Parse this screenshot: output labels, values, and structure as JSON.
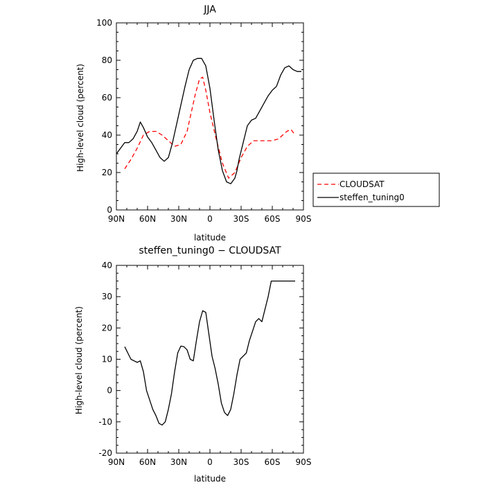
{
  "chart_data": [
    {
      "type": "line",
      "title": "JJA",
      "xlabel": "latitude",
      "ylabel": "High-level cloud (percent)",
      "xlim": [
        -90,
        90
      ],
      "ylim": [
        0,
        100
      ],
      "x_ticks": [
        -90,
        -60,
        -30,
        0,
        30,
        60,
        90
      ],
      "x_tick_labels": [
        "90N",
        "60N",
        "30N",
        "0",
        "30S",
        "60S",
        "90S"
      ],
      "y_ticks": [
        0,
        20,
        40,
        60,
        80,
        100
      ],
      "legend_position": "right",
      "series": [
        {
          "name": "CLOUDSAT",
          "color": "#ff0000",
          "dash": "dashed",
          "x": [
            -82,
            -76,
            -70,
            -64,
            -58,
            -52,
            -46,
            -40,
            -34,
            -28,
            -22,
            -18,
            -14,
            -10,
            -7,
            -4,
            0,
            6,
            12,
            18,
            24,
            30,
            36,
            42,
            48,
            54,
            60,
            66,
            70,
            74,
            78,
            82
          ],
          "y": [
            22,
            27,
            33,
            40,
            42,
            42,
            40,
            37,
            34,
            35,
            42,
            52,
            62,
            70,
            71,
            64,
            52,
            38,
            25,
            17,
            20,
            28,
            34,
            37,
            37,
            37,
            37,
            38,
            40,
            42,
            43,
            40
          ]
        },
        {
          "name": "steffen_tuning0",
          "color": "#000000",
          "dash": "solid",
          "x": [
            -90,
            -86,
            -82,
            -78,
            -74,
            -70,
            -67,
            -64,
            -60,
            -56,
            -52,
            -48,
            -44,
            -40,
            -36,
            -32,
            -28,
            -24,
            -20,
            -16,
            -12,
            -8,
            -4,
            0,
            4,
            8,
            12,
            16,
            20,
            24,
            26,
            28,
            32,
            36,
            40,
            44,
            48,
            52,
            56,
            60,
            64,
            68,
            72,
            76,
            80,
            84,
            88
          ],
          "y": [
            30,
            33,
            36,
            36,
            38,
            42,
            47,
            44,
            39,
            36,
            32,
            28,
            26,
            28,
            36,
            46,
            56,
            66,
            75,
            80,
            81,
            81,
            77,
            65,
            48,
            32,
            21,
            15,
            14,
            17,
            21,
            27,
            36,
            45,
            48,
            49,
            53,
            57,
            61,
            64,
            66,
            72,
            76,
            77,
            75,
            74,
            74
          ]
        }
      ]
    },
    {
      "type": "line",
      "title": "steffen_tuning0 − CLOUDSAT",
      "xlabel": "latitude",
      "ylabel": "High-level cloud (percent)",
      "xlim": [
        -90,
        90
      ],
      "ylim": [
        -20,
        40
      ],
      "x_ticks": [
        -90,
        -60,
        -30,
        0,
        30,
        60,
        90
      ],
      "x_tick_labels": [
        "90N",
        "60N",
        "30N",
        "0",
        "30S",
        "60S",
        "90S"
      ],
      "y_ticks": [
        -20,
        -10,
        0,
        10,
        20,
        30,
        40
      ],
      "series": [
        {
          "color": "#000000",
          "dash": "solid",
          "x": [
            -82,
            -79,
            -76,
            -73,
            -70,
            -67,
            -64,
            -61,
            -58,
            -55,
            -52,
            -49,
            -46,
            -43,
            -40,
            -37,
            -34,
            -31,
            -28,
            -25,
            -22,
            -19,
            -16,
            -13,
            -10,
            -7,
            -4,
            -1,
            2,
            5,
            8,
            11,
            14,
            17,
            20,
            23,
            26,
            29,
            32,
            35,
            38,
            41,
            44,
            47,
            50,
            53,
            56,
            59,
            62,
            65,
            68,
            71,
            74,
            77,
            80,
            82
          ],
          "y": [
            14,
            12,
            10,
            9.5,
            9,
            9.5,
            6,
            0,
            -3,
            -6,
            -8,
            -10.5,
            -11,
            -10,
            -6,
            -1,
            6,
            12,
            14.2,
            14,
            13,
            10,
            9.5,
            16,
            22,
            25.5,
            25,
            18,
            11,
            7,
            2,
            -4,
            -7,
            -8,
            -6,
            -1,
            5,
            10,
            11,
            12,
            16,
            19,
            22,
            23,
            22,
            26,
            30,
            35,
            35,
            35,
            35,
            35,
            35,
            35,
            35,
            35
          ]
        }
      ]
    }
  ]
}
